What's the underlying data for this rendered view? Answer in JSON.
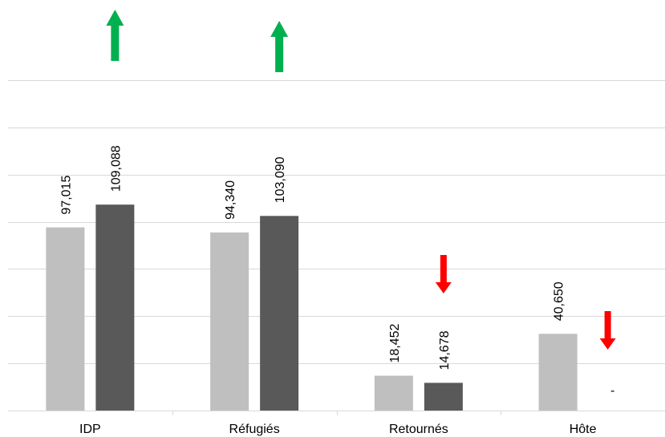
{
  "chart_data": {
    "type": "bar",
    "categories": [
      "IDP",
      "Réfugiés",
      "Retournés",
      "Hôte"
    ],
    "series": [
      {
        "values": [
          97015,
          94340,
          18452,
          40650
        ],
        "color": "#bfbfbf"
      },
      {
        "values": [
          109088,
          103090,
          14678,
          0
        ],
        "color": "#595959"
      }
    ],
    "data_labels": [
      [
        "97,015",
        "94,340",
        "18,452",
        "40,650"
      ],
      [
        "109,088",
        "103,090",
        "14,678",
        "-"
      ]
    ],
    "trend_arrows": [
      {
        "category": "IDP",
        "direction": "up",
        "color": "#00b050"
      },
      {
        "category": "Réfugiés",
        "direction": "up",
        "color": "#00b050"
      },
      {
        "category": "Retournés",
        "direction": "down",
        "color": "#ff0000"
      },
      {
        "category": "Hôte",
        "direction": "down",
        "color": "#ff0000"
      }
    ],
    "ylim": [
      0,
      175000
    ],
    "grid": true,
    "legend": "none",
    "title": "",
    "xlabel": "",
    "ylabel": ""
  }
}
